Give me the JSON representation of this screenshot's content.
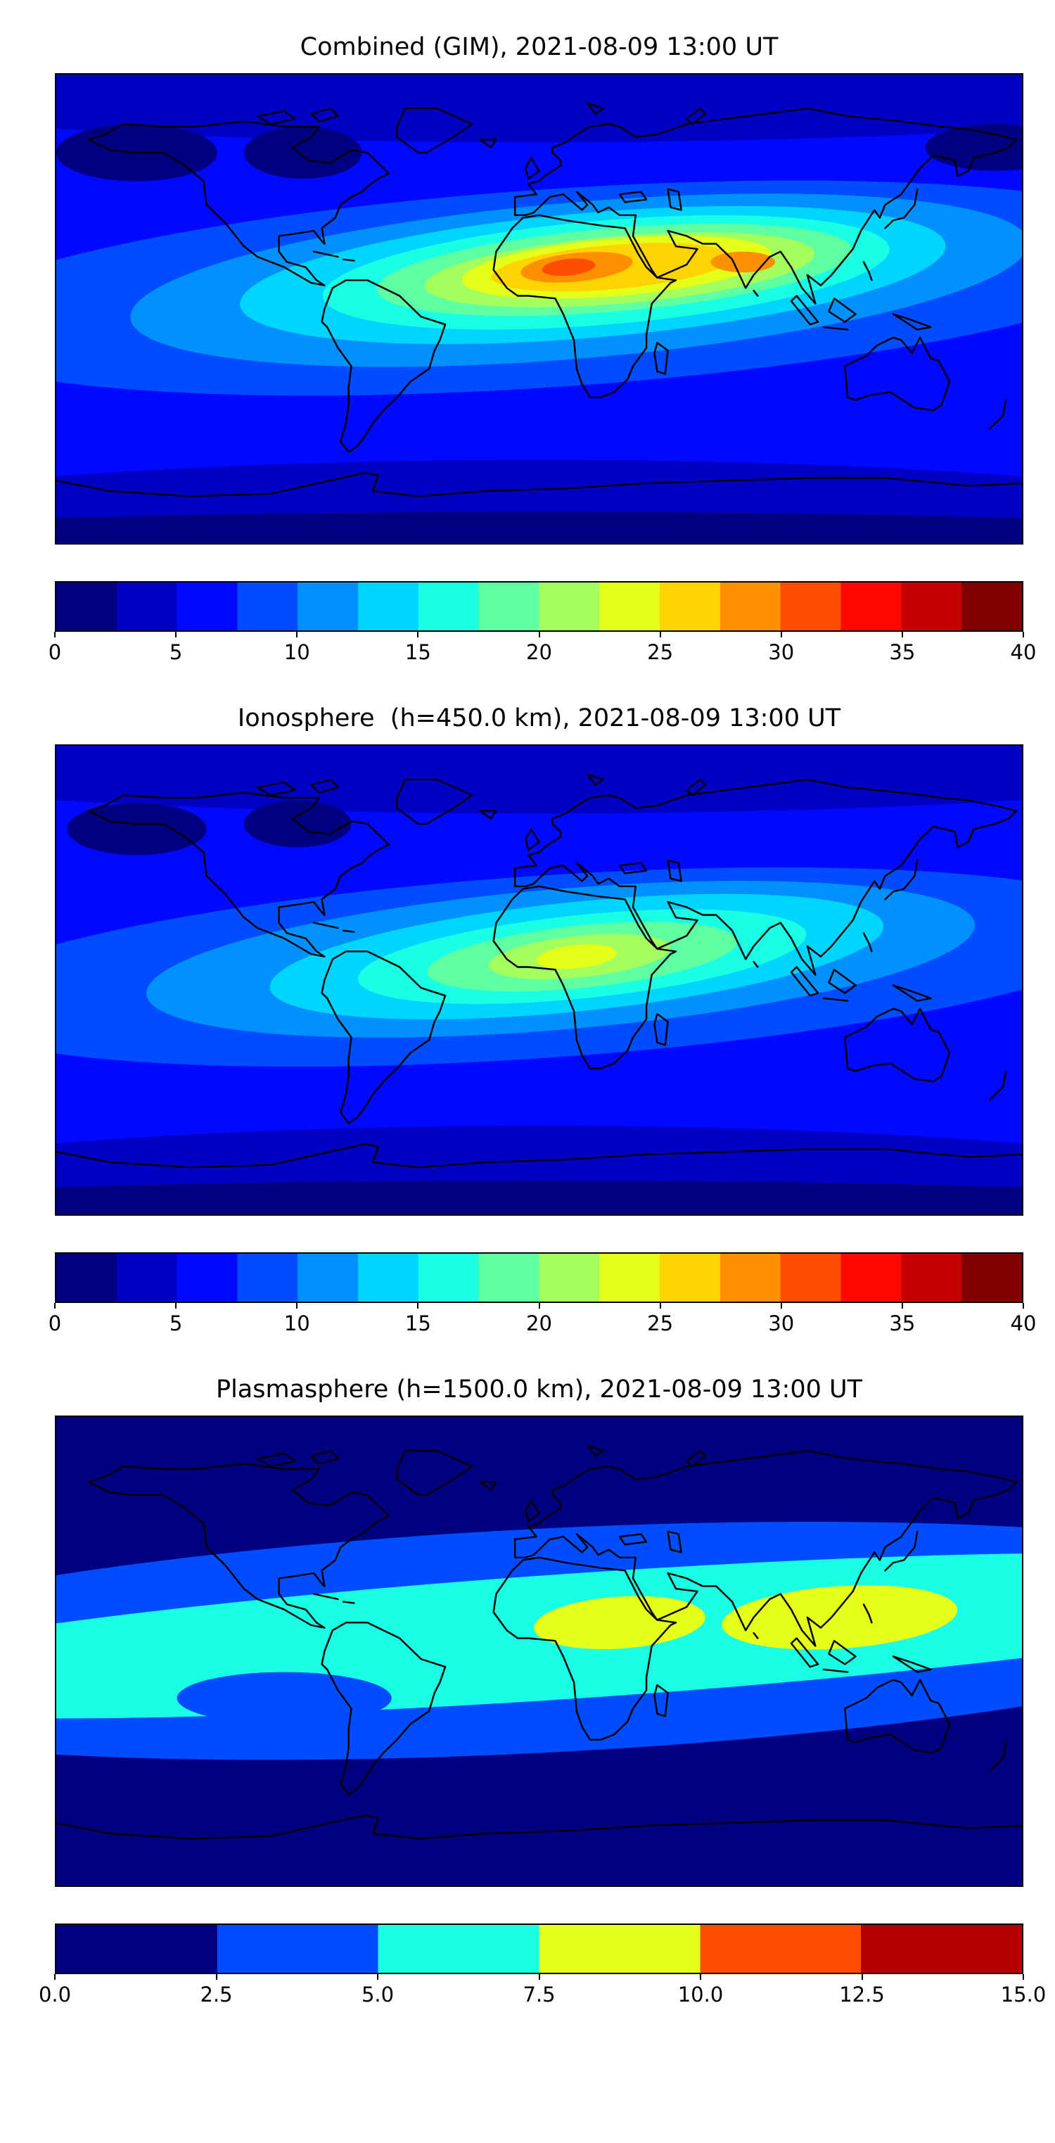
{
  "figure": {
    "background": "#ffffff",
    "coastline_color": "#000000",
    "panel_count": 3
  },
  "chart_data": [
    {
      "type": "heatmap",
      "title": "Combined (GIM), 2021-08-09 13:00 UT",
      "map_projection": "equirectangular world map with coastlines",
      "lon_range": [
        -180,
        180
      ],
      "lat_range": [
        -90,
        90
      ],
      "colormap": "jet (discrete filled contours)",
      "vmin": 0,
      "vmax": 40,
      "level_step": 2.5,
      "n_levels": 16,
      "tick_labels": [
        "0",
        "5",
        "10",
        "15",
        "20",
        "25",
        "30",
        "35",
        "40"
      ],
      "tick_values": [
        0,
        5,
        10,
        15,
        20,
        25,
        30,
        35,
        40
      ],
      "colors": [
        "#000080",
        "#0000c4",
        "#0009ff",
        "#004dff",
        "#0091ff",
        "#00d5ff",
        "#19ffe6",
        "#5effa2",
        "#a2ff5e",
        "#e6ff19",
        "#ffd400",
        "#ff9100",
        "#ff4d00",
        "#ff0800",
        "#c40000",
        "#800000"
      ],
      "background_level": 2,
      "coastline_color": "#000000",
      "legend_position": "horizontal colorbar below map",
      "peak": {
        "lon": 12,
        "lat": 16,
        "approx_value": 32
      },
      "secondary_peak": {
        "lon": 76,
        "lat": 18,
        "approx_value": 29
      },
      "contour_blobs": [
        {
          "i": 1,
          "lon": 0,
          "lat": 90,
          "rx": 300,
          "ry": 26,
          "rot": 0
        },
        {
          "i": 1,
          "lon": 0,
          "lat": -90,
          "rx": 300,
          "ry": 32,
          "rot": 0
        },
        {
          "i": 0,
          "lon": -150,
          "lat": 60,
          "rx": 30,
          "ry": 11,
          "rot": 0
        },
        {
          "i": 0,
          "lon": -88,
          "lat": 60,
          "rx": 22,
          "ry": 10,
          "rot": 0
        },
        {
          "i": 0,
          "lon": 170,
          "lat": 62,
          "rx": 26,
          "ry": 9,
          "rot": 0
        },
        {
          "i": 0,
          "lon": 0,
          "lat": -90,
          "rx": 300,
          "ry": 12,
          "rot": 0
        },
        {
          "i": 3,
          "lon": 5,
          "lat": 8,
          "rx": 235,
          "ry": 38,
          "rot": -4
        },
        {
          "i": 4,
          "lon": 15,
          "lat": 11,
          "rx": 168,
          "ry": 30,
          "rot": -5
        },
        {
          "i": 5,
          "lon": 20,
          "lat": 13,
          "rx": 132,
          "ry": 24,
          "rot": -5
        },
        {
          "i": 6,
          "lon": 25,
          "lat": 14,
          "rx": 106,
          "ry": 20,
          "rot": -5
        },
        {
          "i": 7,
          "lon": 28,
          "lat": 15,
          "rx": 89,
          "ry": 16,
          "rot": -5
        },
        {
          "i": 8,
          "lon": 30,
          "lat": 15,
          "rx": 73,
          "ry": 13,
          "rot": -5
        },
        {
          "i": 9,
          "lon": 29,
          "lat": 16,
          "rx": 58,
          "ry": 11,
          "rot": -5
        },
        {
          "i": 10,
          "lon": 27,
          "lat": 16,
          "rx": 45,
          "ry": 8.5,
          "rot": -5
        },
        {
          "i": 11,
          "lon": 14,
          "lat": 16,
          "rx": 21,
          "ry": 5.5,
          "rot": -6
        },
        {
          "i": 12,
          "lon": 11,
          "lat": 16,
          "rx": 10,
          "ry": 3.2,
          "rot": -6
        },
        {
          "i": 11,
          "lon": 76,
          "lat": 18,
          "rx": 12,
          "ry": 4,
          "rot": 0
        }
      ]
    },
    {
      "type": "heatmap",
      "title": "Ionosphere  (h=450.0 km), 2021-08-09 13:00 UT",
      "map_projection": "equirectangular world map with coastlines",
      "lon_range": [
        -180,
        180
      ],
      "lat_range": [
        -90,
        90
      ],
      "colormap": "jet (discrete filled contours)",
      "vmin": 0,
      "vmax": 40,
      "level_step": 2.5,
      "n_levels": 16,
      "tick_labels": [
        "0",
        "5",
        "10",
        "15",
        "20",
        "25",
        "30",
        "35",
        "40"
      ],
      "tick_values": [
        0,
        5,
        10,
        15,
        20,
        25,
        30,
        35,
        40
      ],
      "colors": [
        "#000080",
        "#0000c4",
        "#0009ff",
        "#004dff",
        "#0091ff",
        "#00d5ff",
        "#19ffe6",
        "#5effa2",
        "#a2ff5e",
        "#e6ff19",
        "#ffd400",
        "#ff9100",
        "#ff4d00",
        "#ff0800",
        "#c40000",
        "#800000"
      ],
      "background_level": 2,
      "coastline_color": "#000000",
      "legend_position": "horizontal colorbar below map",
      "peak": {
        "lon": 14,
        "lat": 9,
        "approx_value": 23
      },
      "contour_blobs": [
        {
          "i": 1,
          "lon": 0,
          "lat": 90,
          "rx": 300,
          "ry": 26,
          "rot": 0
        },
        {
          "i": 1,
          "lon": 0,
          "lat": -90,
          "rx": 300,
          "ry": 34,
          "rot": 0
        },
        {
          "i": 0,
          "lon": -150,
          "lat": 58,
          "rx": 26,
          "ry": 10,
          "rot": 0
        },
        {
          "i": 0,
          "lon": -90,
          "lat": 60,
          "rx": 20,
          "ry": 9,
          "rot": 0
        },
        {
          "i": 0,
          "lon": 0,
          "lat": -90,
          "rx": 300,
          "ry": 13,
          "rot": 0
        },
        {
          "i": 3,
          "lon": 0,
          "lat": 5,
          "rx": 225,
          "ry": 35,
          "rot": -4
        },
        {
          "i": 4,
          "lon": 8,
          "lat": 8,
          "rx": 155,
          "ry": 27,
          "rot": -5
        },
        {
          "i": 5,
          "lon": 14,
          "lat": 9,
          "rx": 115,
          "ry": 21,
          "rot": -6
        },
        {
          "i": 6,
          "lon": 16,
          "lat": 9,
          "rx": 84,
          "ry": 16,
          "rot": -6
        },
        {
          "i": 7,
          "lon": 16,
          "lat": 9,
          "rx": 58,
          "ry": 12,
          "rot": -6
        },
        {
          "i": 8,
          "lon": 15,
          "lat": 9,
          "rx": 34,
          "ry": 8,
          "rot": -6
        },
        {
          "i": 9,
          "lon": 14,
          "lat": 9,
          "rx": 15,
          "ry": 4.5,
          "rot": -6
        }
      ]
    },
    {
      "type": "heatmap",
      "title": "Plasmasphere (h=1500.0 km), 2021-08-09 13:00 UT",
      "map_projection": "equirectangular world map with coastlines",
      "lon_range": [
        -180,
        180
      ],
      "lat_range": [
        -90,
        90
      ],
      "colormap": "jet (discrete filled contours)",
      "vmin": 0,
      "vmax": 15,
      "level_step": 2.5,
      "n_levels": 6,
      "tick_labels": [
        "0.0",
        "2.5",
        "5.0",
        "7.5",
        "10.0",
        "12.5",
        "15.0"
      ],
      "tick_values": [
        0,
        2.5,
        5,
        7.5,
        10,
        12.5,
        15
      ],
      "colors": [
        "#000080",
        "#004dff",
        "#19ffe6",
        "#e6ff19",
        "#ff4d00",
        "#b40000"
      ],
      "background_level": 0,
      "coastline_color": "#000000",
      "legend_position": "horizontal colorbar below map",
      "peak": {
        "lon": 112,
        "lat": 13,
        "approx_value": 9
      },
      "secondary_peak": {
        "lon": 30,
        "lat": 11,
        "approx_value": 8.5
      },
      "contour_blobs": [
        {
          "i": 1,
          "lon": 0,
          "lat": 4,
          "rx": 300,
          "ry": 43,
          "rot": -3
        },
        {
          "i": 2,
          "lon": 15,
          "lat": 6,
          "rx": 300,
          "ry": 24,
          "rot": -4
        },
        {
          "i": 1,
          "lon": -95,
          "lat": -18,
          "rx": 40,
          "ry": 10,
          "rot": 0
        },
        {
          "i": 3,
          "lon": 30,
          "lat": 11,
          "rx": 32,
          "ry": 10,
          "rot": -4
        },
        {
          "i": 3,
          "lon": 112,
          "lat": 13,
          "rx": 44,
          "ry": 12,
          "rot": -4
        }
      ]
    }
  ]
}
